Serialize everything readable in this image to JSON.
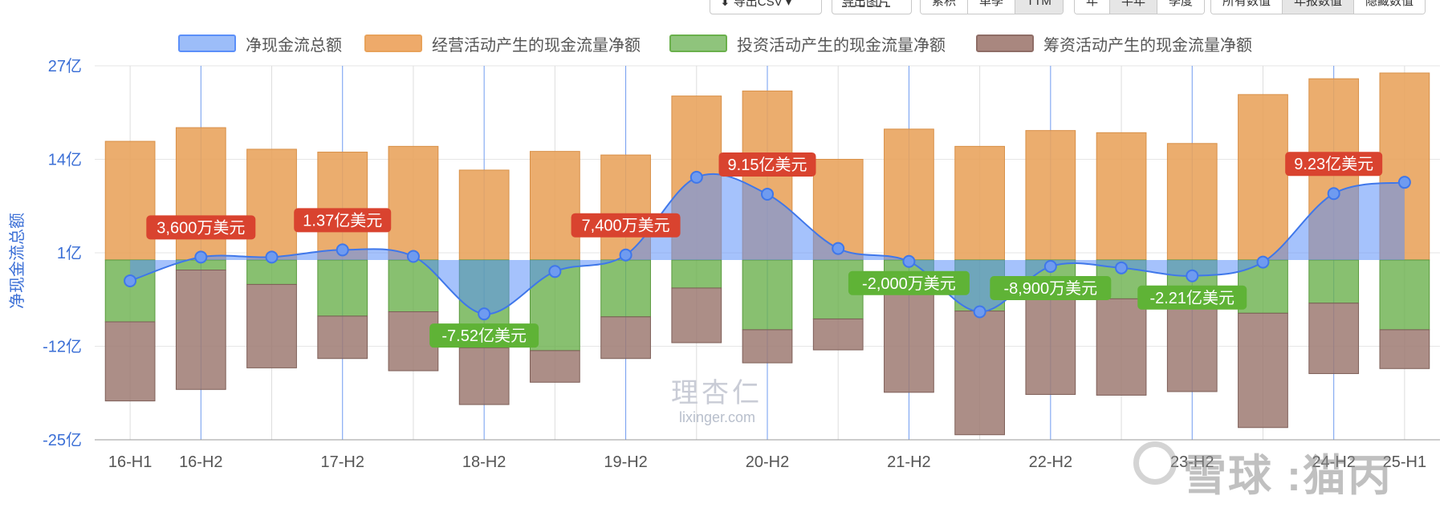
{
  "toolbar": {
    "export_csv": "导出CSV",
    "export_image": "导出图片",
    "period_mode": [
      "累积",
      "单季",
      "TTM"
    ],
    "period_mode_active": 2,
    "interval": [
      "年",
      "半年",
      "季度"
    ],
    "interval_active": 1,
    "data_scope": [
      "所有数值",
      "年报数值",
      "隐藏数值"
    ],
    "data_scope_active": 1
  },
  "watermark": {
    "logo": "理杏仁",
    "url": "lixinger.com",
    "xueqiu": "雪球 :猫丙"
  },
  "colors": {
    "net": "#5b8ff9",
    "operating": "#e8a25a",
    "investing": "#6ab04c",
    "financing": "#9e7a72",
    "label_positive": "#d9432f",
    "label_negative": "#5fb336",
    "axis_text": "#3b6fd6",
    "tick_text": "#555555",
    "grid": "#e6e6e6"
  },
  "chart_data": {
    "type": "bar",
    "ylabel": "净现金流总额",
    "yticks": [
      "27亿",
      "14亿",
      "1亿",
      "-12亿",
      "-25亿"
    ],
    "ytick_values": [
      27,
      14,
      1,
      -12,
      -25
    ],
    "ylim": [
      -25,
      27
    ],
    "categories": [
      "16-H1",
      "16-H2",
      "17-H1",
      "17-H2",
      "18-H1",
      "18-H2",
      "19-H1",
      "19-H2",
      "20-H1",
      "20-H2",
      "21-H1",
      "21-H2",
      "22-H1",
      "22-H2",
      "23-H1",
      "23-H2",
      "24-H1",
      "24-H2",
      "25-H1"
    ],
    "xtick_labels": [
      "16-H1",
      "16-H2",
      "",
      "17-H2",
      "",
      "18-H2",
      "",
      "19-H2",
      "",
      "20-H2",
      "",
      "21-H2",
      "",
      "22-H2",
      "",
      "23-H2",
      "",
      "24-H2",
      "25-H1"
    ],
    "legend_position": "top",
    "series": [
      {
        "name": "净现金流总额",
        "kind": "area-line",
        "values": [
          -2.9,
          0.4,
          0.4,
          1.4,
          0.5,
          -7.5,
          -1.6,
          0.7,
          11.5,
          9.15,
          1.6,
          -0.2,
          -7.2,
          -0.9,
          -1.1,
          -2.21,
          -0.3,
          9.23,
          10.8
        ]
      },
      {
        "name": "经营活动产生的现金流量净额",
        "kind": "bar",
        "values": [
          16.5,
          18.4,
          15.4,
          15.0,
          15.8,
          12.5,
          15.1,
          14.6,
          22.8,
          23.5,
          14.0,
          18.2,
          15.8,
          18.0,
          17.7,
          16.2,
          23.0,
          25.2,
          26.0
        ]
      },
      {
        "name": "投资活动产生的现金流量净额",
        "kind": "bar",
        "values": [
          -8.6,
          -1.4,
          -3.4,
          -7.8,
          -7.2,
          -12.2,
          -12.6,
          -7.9,
          -3.9,
          -9.7,
          -8.2,
          -4.6,
          -7.1,
          -5.2,
          -5.4,
          -6.4,
          -7.4,
          -6.0,
          -9.7
        ]
      },
      {
        "name": "筹资活动产生的现金流量净额",
        "kind": "bar",
        "values": [
          -11.0,
          -16.6,
          -11.6,
          -5.9,
          -8.2,
          -7.9,
          -4.4,
          -5.8,
          -7.6,
          -4.6,
          -4.3,
          -13.8,
          -17.2,
          -13.5,
          -13.4,
          -11.9,
          -15.9,
          -9.8,
          -5.4
        ]
      }
    ],
    "annotations": [
      {
        "index": 1,
        "text": "3,600万美元",
        "sign": "positive"
      },
      {
        "index": 3,
        "text": "1.37亿美元",
        "sign": "positive"
      },
      {
        "index": 5,
        "text": "-7.52亿美元",
        "sign": "negative"
      },
      {
        "index": 7,
        "text": "7,400万美元",
        "sign": "positive"
      },
      {
        "index": 9,
        "text": "9.15亿美元",
        "sign": "positive"
      },
      {
        "index": 11,
        "text": "-2,000万美元",
        "sign": "negative"
      },
      {
        "index": 13,
        "text": "-8,900万美元",
        "sign": "negative"
      },
      {
        "index": 15,
        "text": "-2.21亿美元",
        "sign": "negative"
      },
      {
        "index": 17,
        "text": "9.23亿美元",
        "sign": "positive"
      }
    ]
  }
}
